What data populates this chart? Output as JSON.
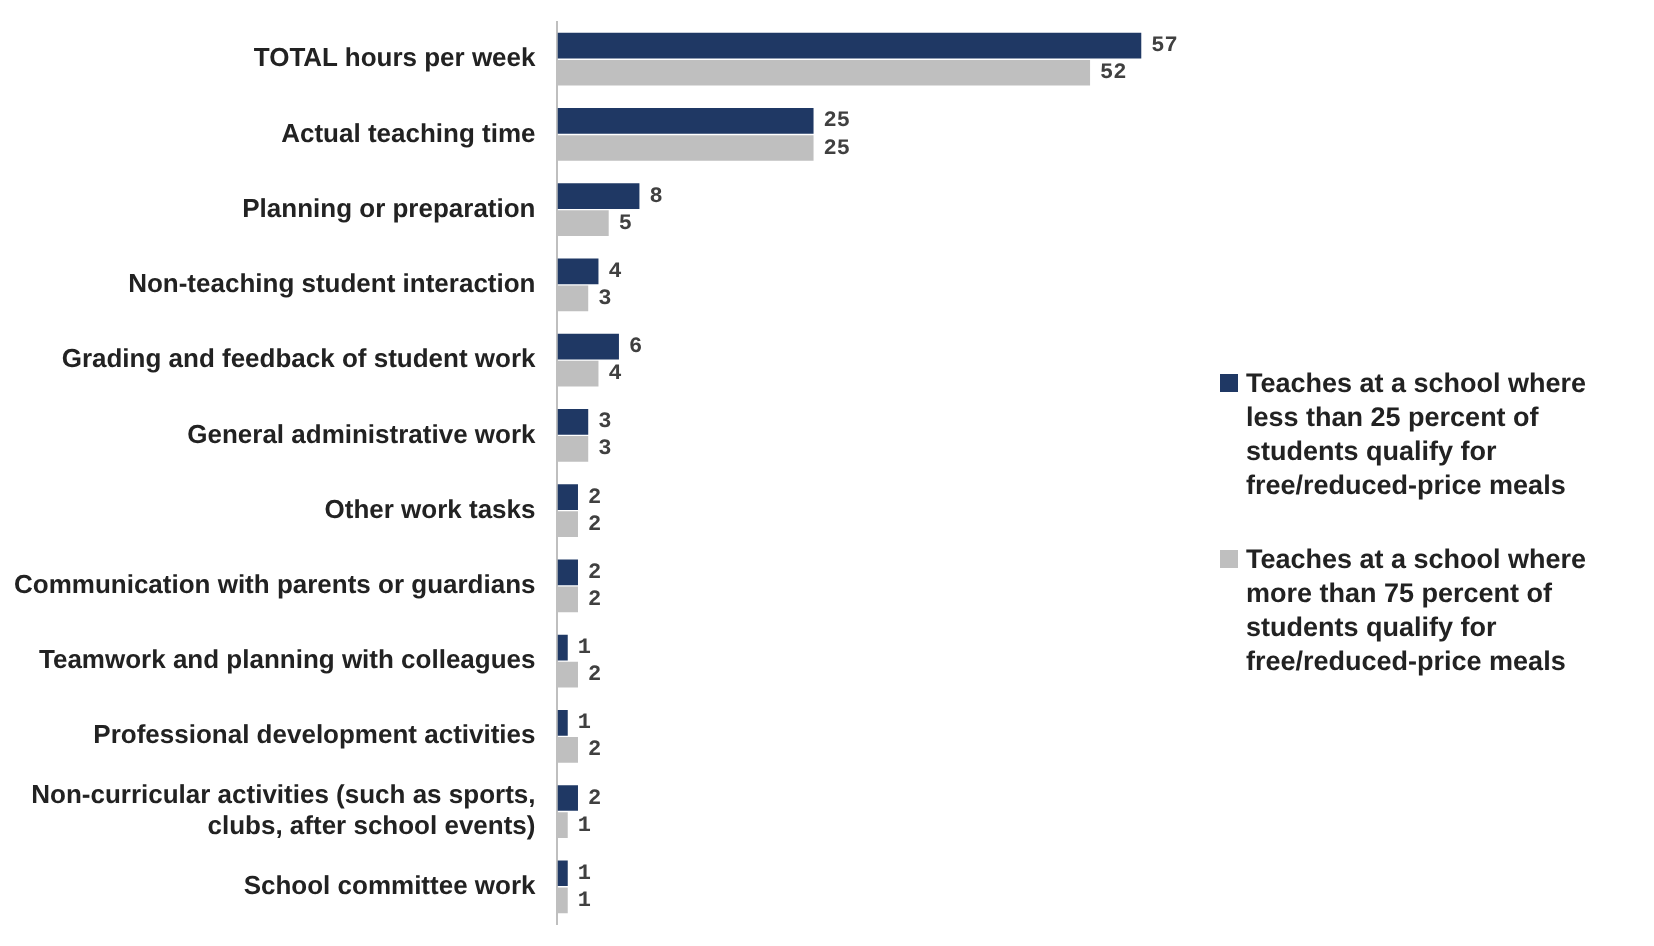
{
  "chart_data": {
    "type": "bar",
    "orientation": "horizontal",
    "categories": [
      "TOTAL hours per week",
      "Actual teaching time",
      "Planning or preparation",
      "Non-teaching student interaction",
      "Grading and feedback of student work",
      "General administrative work",
      "Other work tasks",
      "Communication with parents or guardians",
      "Teamwork and planning with colleagues",
      "Professional development activities",
      "Non-curricular activities (such as sports, clubs, after school events)",
      "School committee work"
    ],
    "series": [
      {
        "name": "Teaches at a school where less than 25 percent of students qualify for free/reduced-price meals",
        "color": "#1f3864",
        "values": [
          57,
          25,
          8,
          4,
          6,
          3,
          2,
          2,
          1,
          1,
          2,
          1
        ]
      },
      {
        "name": "Teaches at a school where more than 75 percent of students qualify for free/reduced-price meals",
        "color": "#bfbfbf",
        "values": [
          52,
          25,
          5,
          3,
          4,
          3,
          2,
          2,
          2,
          2,
          1,
          1
        ]
      }
    ],
    "data_labels": true,
    "legend": "right",
    "tick_labels": "y"
  }
}
